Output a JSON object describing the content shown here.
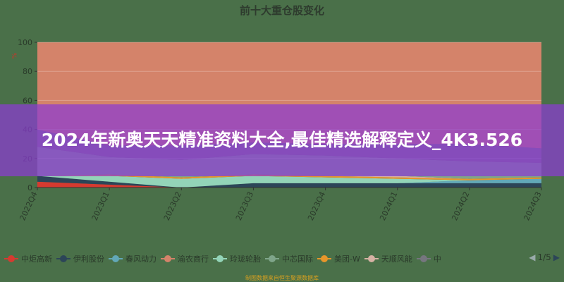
{
  "chart_data": {
    "type": "area",
    "stacked": true,
    "title": "前十大重仓股变化",
    "ylabel": "%",
    "ylim": [
      0,
      100
    ],
    "yticks": [
      0,
      20,
      40,
      60,
      80,
      100
    ],
    "grid": true,
    "categories": [
      "2022Q4",
      "2023Q1",
      "2023Q2",
      "2023Q3",
      "2023Q4",
      "2024Q1",
      "2024Q2",
      "2024Q3"
    ],
    "series": [
      {
        "name": "中炬高新",
        "color": "#d63a30",
        "values": [
          4,
          2,
          0,
          0,
          0,
          0,
          0,
          0
        ]
      },
      {
        "name": "伊利股份",
        "color": "#2c4558",
        "values": [
          4,
          2,
          0,
          3,
          3,
          3,
          3,
          3
        ]
      },
      {
        "name": "春风动力",
        "color": "#62a8b8",
        "values": [
          0,
          0,
          0,
          0,
          0,
          0,
          2,
          3
        ]
      },
      {
        "name": "玲珑轮胎",
        "color": "#93d4b8",
        "values": [
          0,
          4,
          6,
          5,
          4,
          3,
          0,
          0
        ]
      },
      {
        "name": "美团-W",
        "color": "#e8962a",
        "values": [
          0,
          1,
          1,
          1,
          1,
          1,
          1,
          1
        ]
      },
      {
        "name": "天顺风能",
        "color": "#d6b2a4",
        "values": [
          0,
          0,
          0,
          0,
          0,
          1,
          0,
          0
        ]
      },
      {
        "name": "中芯国际",
        "color": "#7fa58a",
        "values": [
          20,
          12,
          12,
          14,
          14,
          12,
          12,
          10
        ]
      },
      {
        "name": "中",
        "color": "#76767f",
        "values": [
          12,
          8,
          10,
          8,
          8,
          10,
          12,
          10
        ]
      },
      {
        "name": "渝农商行",
        "color": "#d4836a",
        "values": [
          60,
          71,
          71,
          69,
          70,
          70,
          70,
          73
        ]
      }
    ],
    "legend_position": "bottom",
    "legend_order": [
      "中炬高新",
      "伊利股份",
      "春风动力",
      "渝农商行",
      "玲珑轮胎",
      "中芯国际",
      "美团-W",
      "天顺风能",
      "中"
    ],
    "legend_page": "1/5"
  },
  "overlay_text": "2024年新奥天天精准资料大全,最佳精选解释定义_4K3.526",
  "footer": "制图数据来自恒生聚源数据库"
}
